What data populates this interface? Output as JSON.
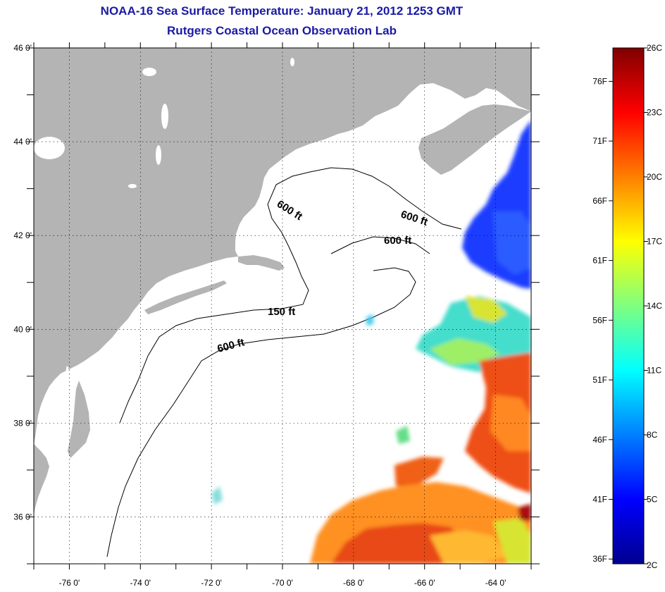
{
  "header": {
    "title": "NOAA-16 Sea Surface Temperature:  January 21, 2012 1253 GMT",
    "subtitle": "Rutgers Coastal Ocean Observation Lab"
  },
  "map": {
    "lat_range": [
      35,
      46
    ],
    "lon_range": [
      -77,
      -63
    ],
    "lat_ticks": [
      "46 0'",
      "44 0'",
      "42 0'",
      "40 0'",
      "38 0'",
      "36 0'"
    ],
    "lon_ticks": [
      "-76 0'",
      "-74 0'",
      "-72 0'",
      "-70 0'",
      "-68 0'",
      "-66 0'",
      "-64 0'"
    ],
    "land_color": "#b4b4b4",
    "grid": "dotted",
    "depth_labels": [
      "600 ft",
      "600 ft",
      "600 ft",
      "150 ft",
      "600 ft"
    ]
  },
  "colorbar": {
    "fahrenheit_labels": [
      "76F",
      "71F",
      "66F",
      "61F",
      "56F",
      "51F",
      "46F",
      "41F",
      "36F"
    ],
    "celsius_labels": [
      "26C",
      "23C",
      "20C",
      "17C",
      "14C",
      "11C",
      "8C",
      "5C",
      "2C"
    ],
    "min_c": 2,
    "max_c": 26
  }
}
